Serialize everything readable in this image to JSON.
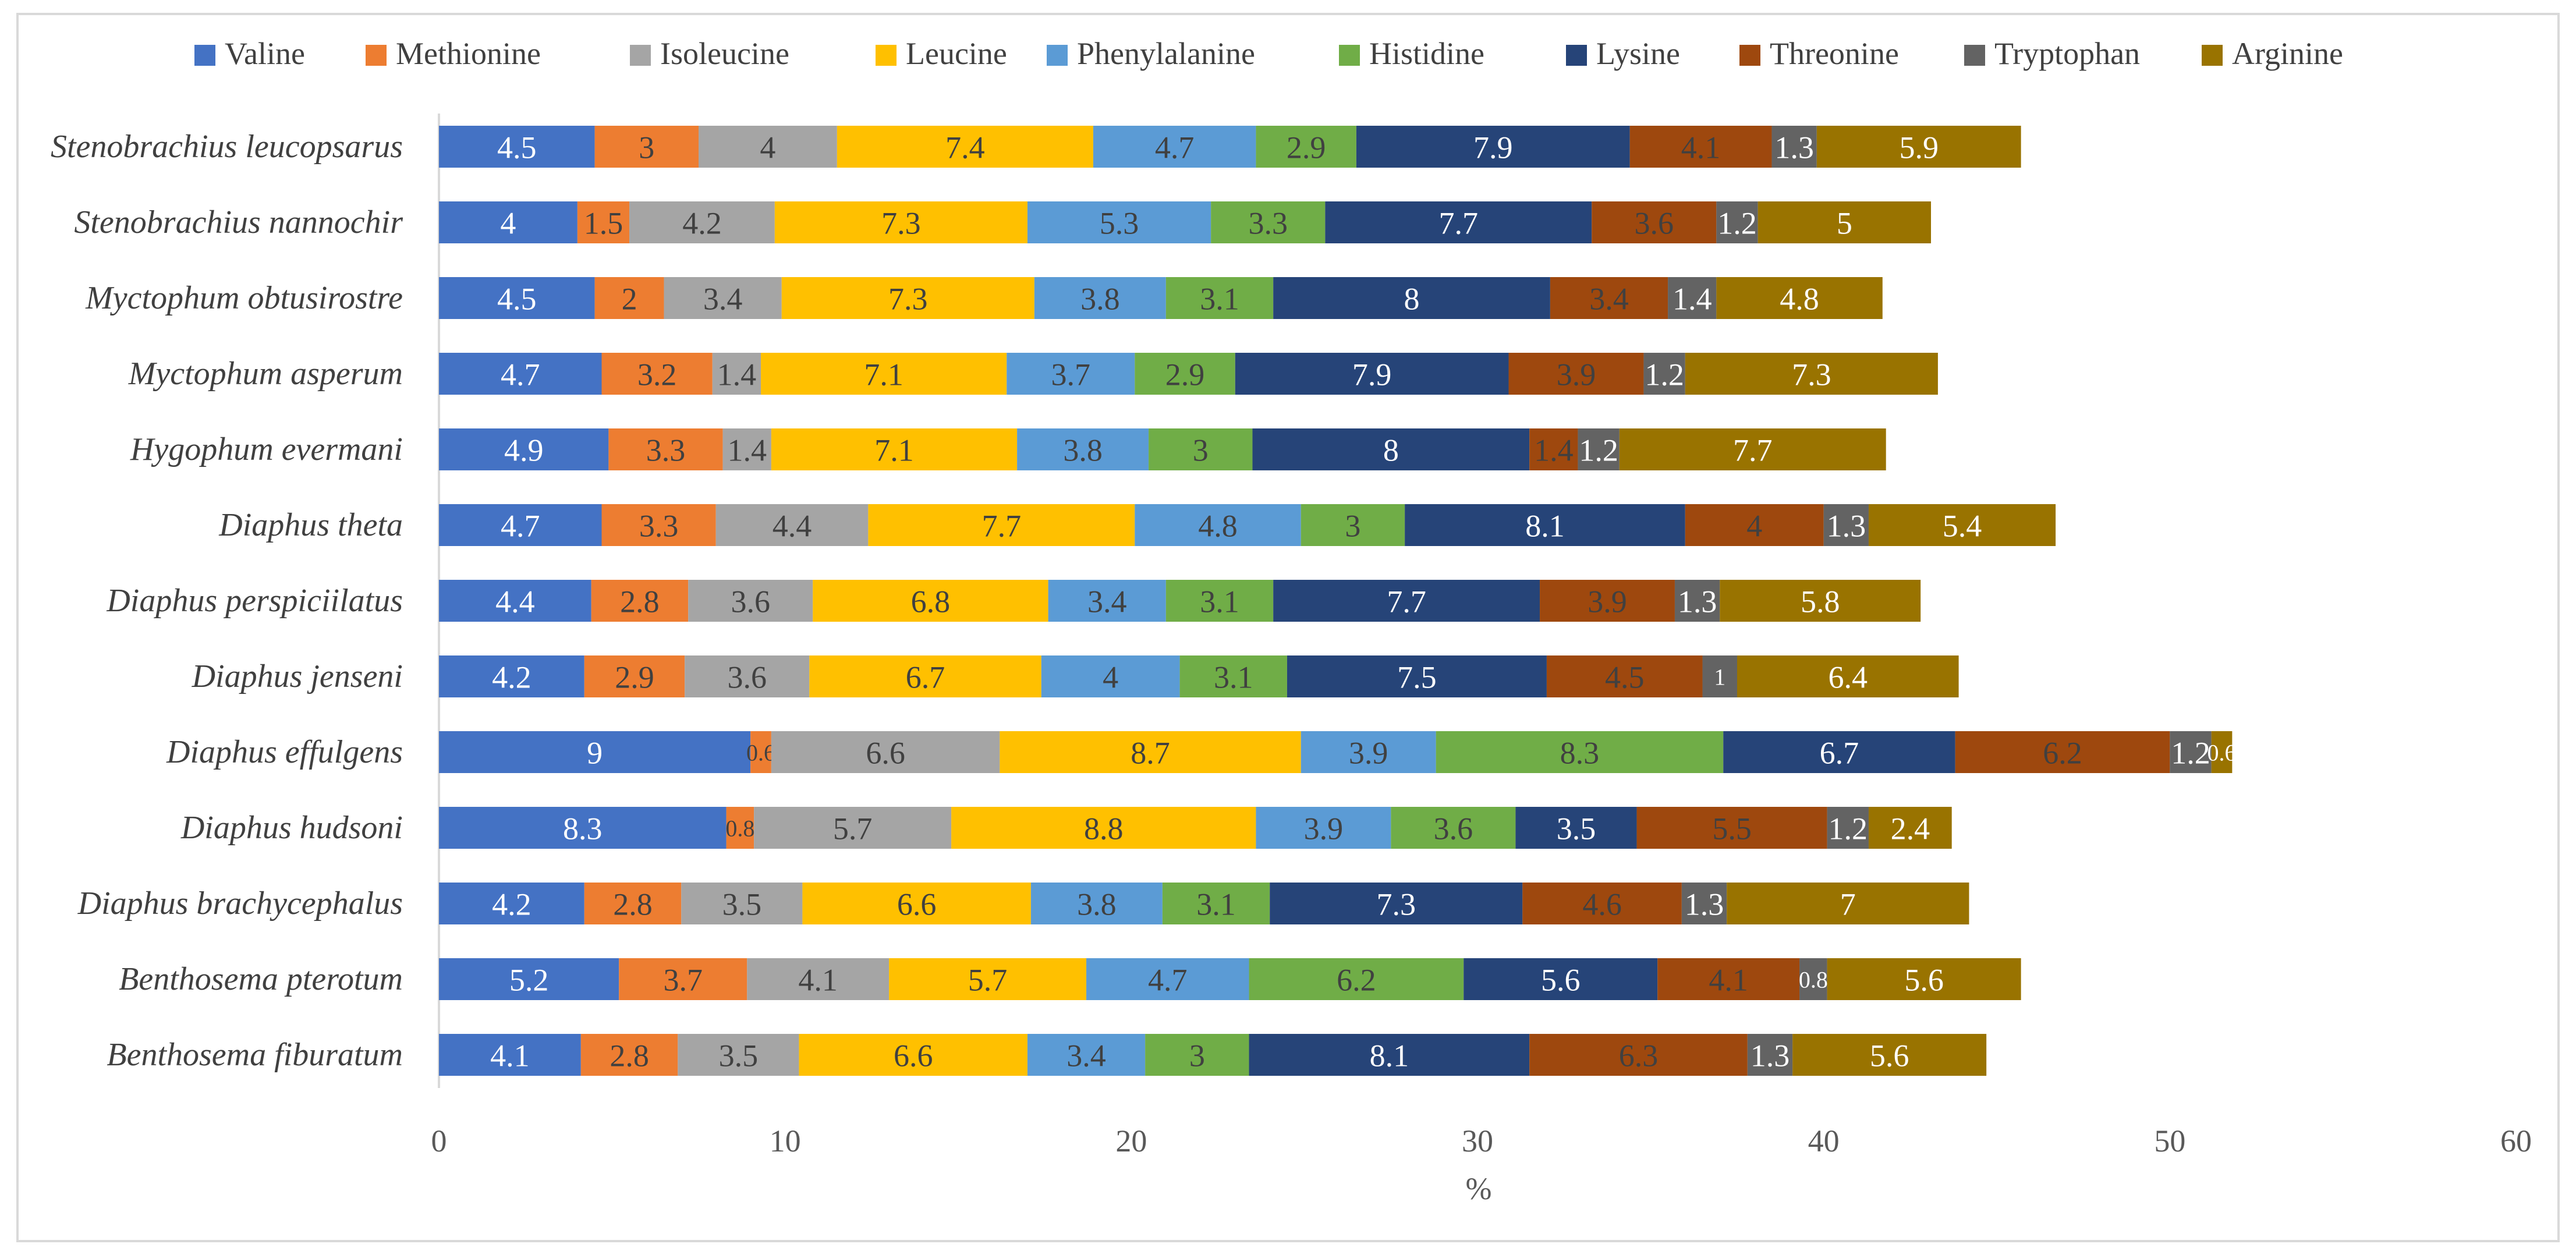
{
  "chart_data": {
    "type": "bar",
    "orientation": "horizontal",
    "stacked": true,
    "title": "",
    "xlabel": "%",
    "ylabel": "",
    "xlim": [
      0,
      60
    ],
    "xticks": [
      0,
      10,
      20,
      30,
      40,
      50,
      60
    ],
    "grid": false,
    "legend_position": "top",
    "categories": [
      "Stenobrachius leucopsarus",
      "Stenobrachius nannochir",
      "Myctophum obtusirostre",
      "Myctophum asperum",
      "Hygophum evermani",
      "Diaphus theta",
      "Diaphus perspiciilatus",
      "Diaphus jenseni",
      "Diaphus effulgens",
      "Diaphus hudsoni",
      "Diaphus brachycephalus",
      "Benthosema pterotum",
      "Benthosema fiburatum"
    ],
    "series": [
      {
        "name": "Valine",
        "color": "#4472C4",
        "label_color": "#ffffff",
        "values": [
          4.5,
          4,
          4.5,
          4.7,
          4.9,
          4.7,
          4.4,
          4.2,
          9,
          8.3,
          4.2,
          5.2,
          4.1
        ]
      },
      {
        "name": "Methionine",
        "color": "#ED7D31",
        "label_color": "#404040",
        "values": [
          3,
          1.5,
          2,
          3.2,
          3.3,
          3.3,
          2.8,
          2.9,
          0.6,
          0.8,
          2.8,
          3.7,
          2.8
        ]
      },
      {
        "name": "Isoleucine",
        "color": "#A5A5A5",
        "label_color": "#404040",
        "values": [
          4,
          4.2,
          3.4,
          1.4,
          1.4,
          4.4,
          3.6,
          3.6,
          6.6,
          5.7,
          3.5,
          4.1,
          3.5
        ]
      },
      {
        "name": "Leucine",
        "color": "#FFC000",
        "label_color": "#404040",
        "values": [
          7.4,
          7.3,
          7.3,
          7.1,
          7.1,
          7.7,
          6.8,
          6.7,
          8.7,
          8.8,
          6.6,
          5.7,
          6.6
        ]
      },
      {
        "name": "Phenylalanine",
        "color": "#5B9BD5",
        "label_color": "#404040",
        "values": [
          4.7,
          5.3,
          3.8,
          3.7,
          3.8,
          4.8,
          3.4,
          4,
          3.9,
          3.9,
          3.8,
          4.7,
          3.4
        ]
      },
      {
        "name": "Histidine",
        "color": "#70AD47",
        "label_color": "#404040",
        "values": [
          2.9,
          3.3,
          3.1,
          2.9,
          3,
          3,
          3.1,
          3.1,
          8.3,
          3.6,
          3.1,
          6.2,
          3
        ]
      },
      {
        "name": "Lysine",
        "color": "#264478",
        "label_color": "#ffffff",
        "values": [
          7.9,
          7.7,
          8,
          7.9,
          8,
          8.1,
          7.7,
          7.5,
          6.7,
          3.5,
          7.3,
          5.6,
          8.1
        ]
      },
      {
        "name": "Threonine",
        "color": "#9E480E",
        "label_color": "#404040",
        "values": [
          4.1,
          3.6,
          3.4,
          3.9,
          1.4,
          4,
          3.9,
          4.5,
          6.2,
          5.5,
          4.6,
          4.1,
          6.3
        ]
      },
      {
        "name": "Tryptophan",
        "color": "#636363",
        "label_color": "#ffffff",
        "values": [
          1.3,
          1.2,
          1.4,
          1.2,
          1.2,
          1.3,
          1.3,
          1,
          1.2,
          1.2,
          1.3,
          0.8,
          1.3
        ]
      },
      {
        "name": "Arginine",
        "color": "#997300",
        "label_color": "#ffffff",
        "values": [
          5.9,
          5,
          4.8,
          7.3,
          7.7,
          5.4,
          5.8,
          6.4,
          0.6,
          2.4,
          7,
          5.6,
          5.6
        ]
      }
    ]
  }
}
